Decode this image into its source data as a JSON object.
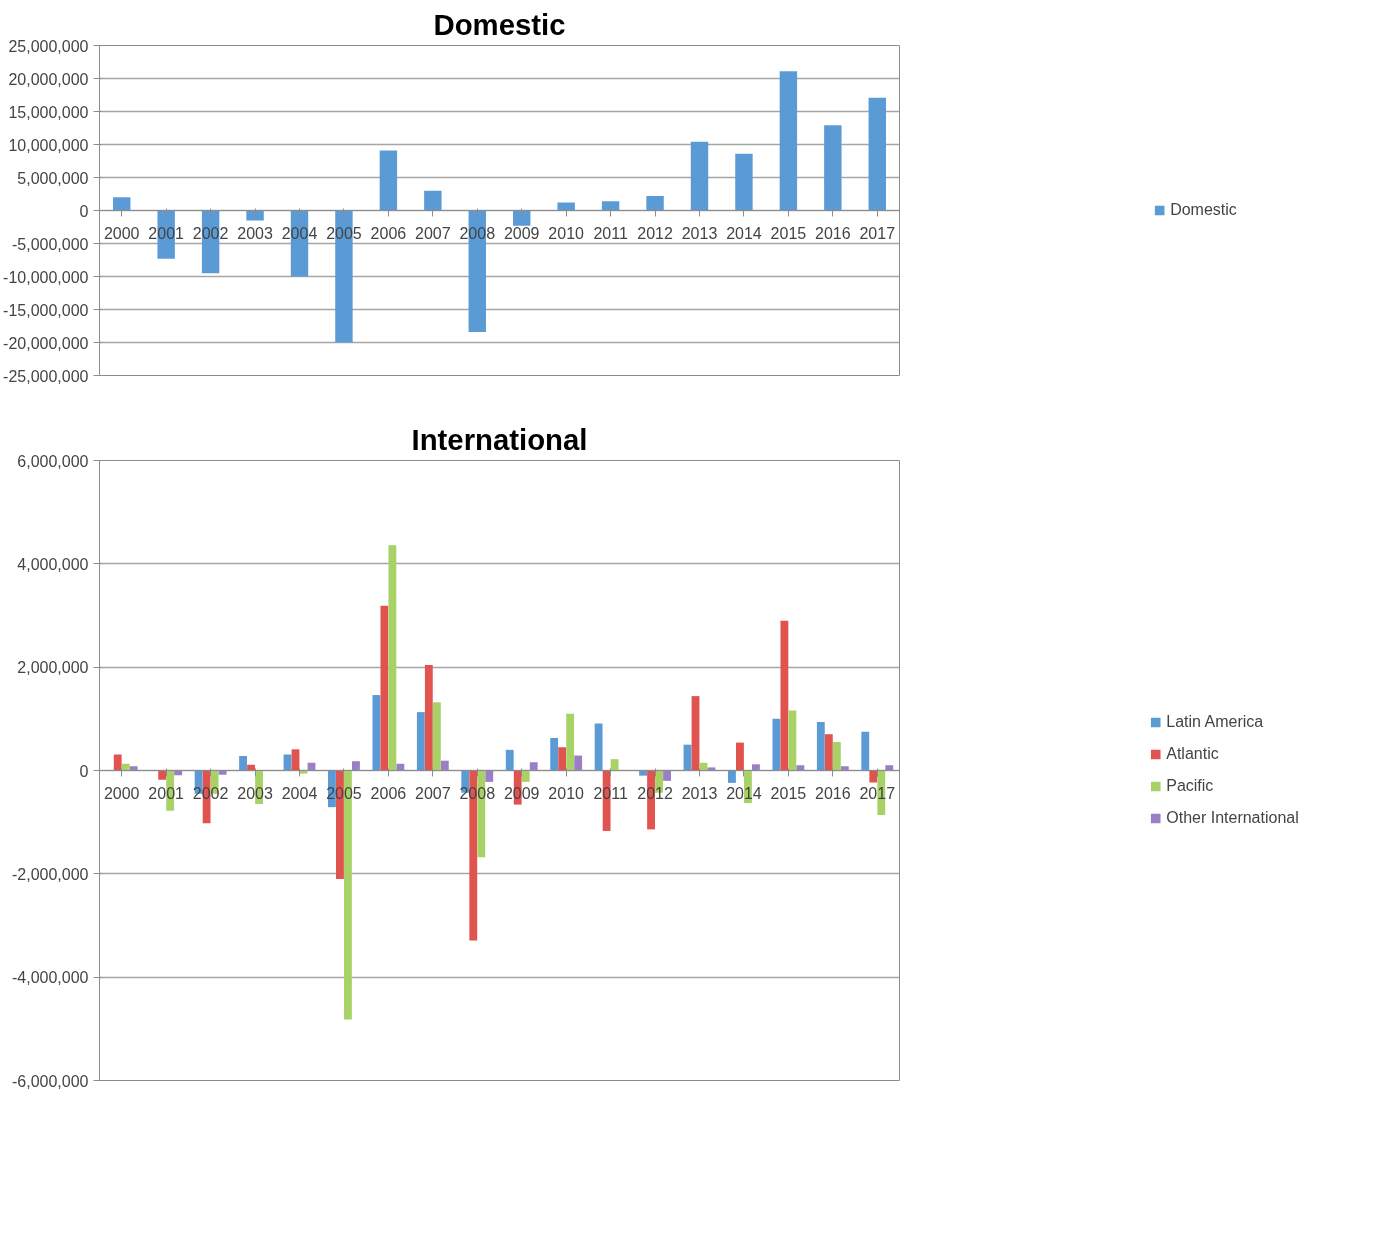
{
  "chart_data": [
    {
      "type": "bar",
      "title": "Domestic",
      "categories": [
        "2000",
        "2001",
        "2002",
        "2003",
        "2004",
        "2005",
        "2006",
        "2007",
        "2008",
        "2009",
        "2010",
        "2011",
        "2012",
        "2013",
        "2014",
        "2015",
        "2016",
        "2017"
      ],
      "series": [
        {
          "name": "Domestic",
          "color": "#5b9bd5",
          "values": [
            2000000,
            -7300000,
            -9500000,
            -1500000,
            -10000000,
            -20000000,
            9100000,
            3000000,
            -18400000,
            -2300000,
            1200000,
            1400000,
            2200000,
            10400000,
            8600000,
            21100000,
            12900000,
            17100000
          ]
        }
      ],
      "ylim": [
        -25000000,
        25000000
      ],
      "yticks": [
        {
          "value": -25000000,
          "label": "-25,000,000"
        },
        {
          "value": -20000000,
          "label": "-20,000,000"
        },
        {
          "value": -15000000,
          "label": "-15,000,000"
        },
        {
          "value": -10000000,
          "label": "-10,000,000"
        },
        {
          "value": -5000000,
          "label": "-5,000,000"
        },
        0,
        {
          "value": 5000000,
          "label": "5,000,000"
        },
        {
          "value": 10000000,
          "label": "10,000,000"
        },
        {
          "value": 15000000,
          "label": "15,000,000"
        },
        {
          "value": 20000000,
          "label": "20,000,000"
        },
        {
          "value": 25000000,
          "label": "25,000,000"
        }
      ],
      "grid": "y",
      "legend": "right"
    },
    {
      "type": "bar",
      "title": "International",
      "categories": [
        "2000",
        "2001",
        "2002",
        "2003",
        "2004",
        "2005",
        "2006",
        "2007",
        "2008",
        "2009",
        "2010",
        "2011",
        "2012",
        "2013",
        "2014",
        "2015",
        "2016",
        "2017"
      ],
      "series": [
        {
          "name": "Latin America",
          "color": "#5b9bd5",
          "values": [
            0,
            0,
            -450000,
            280000,
            310000,
            -710000,
            1460000,
            1130000,
            -430000,
            400000,
            630000,
            910000,
            -100000,
            500000,
            -240000,
            1000000,
            940000,
            750000
          ]
        },
        {
          "name": "Atlantic",
          "color": "#e0534f",
          "values": [
            310000,
            -180000,
            -1020000,
            110000,
            410000,
            -2100000,
            3190000,
            2040000,
            -3290000,
            -660000,
            450000,
            -1170000,
            -1140000,
            1440000,
            540000,
            2900000,
            700000,
            -230000
          ]
        },
        {
          "name": "Pacific",
          "color": "#a9d266",
          "values": [
            130000,
            -780000,
            -450000,
            -650000,
            -60000,
            -4820000,
            4360000,
            1320000,
            -1680000,
            -220000,
            1100000,
            220000,
            -430000,
            150000,
            -630000,
            1160000,
            550000,
            -860000
          ]
        },
        {
          "name": "Other International",
          "color": "#9b7fc6",
          "values": [
            80000,
            -90000,
            -80000,
            0,
            150000,
            180000,
            130000,
            190000,
            -220000,
            160000,
            290000,
            0,
            -200000,
            60000,
            120000,
            100000,
            80000,
            100000
          ]
        }
      ],
      "ylim": [
        -6000000,
        6000000
      ],
      "yticks": [
        {
          "value": -6000000,
          "label": "-6,000,000"
        },
        {
          "value": -4000000,
          "label": "-4,000,000"
        },
        {
          "value": -2000000,
          "label": "-2,000,000"
        },
        0,
        {
          "value": 2000000,
          "label": "2,000,000"
        },
        {
          "value": 4000000,
          "label": "4,000,000"
        },
        {
          "value": 6000000,
          "label": "6,000,000"
        }
      ],
      "grid": "y",
      "legend": "right"
    }
  ]
}
